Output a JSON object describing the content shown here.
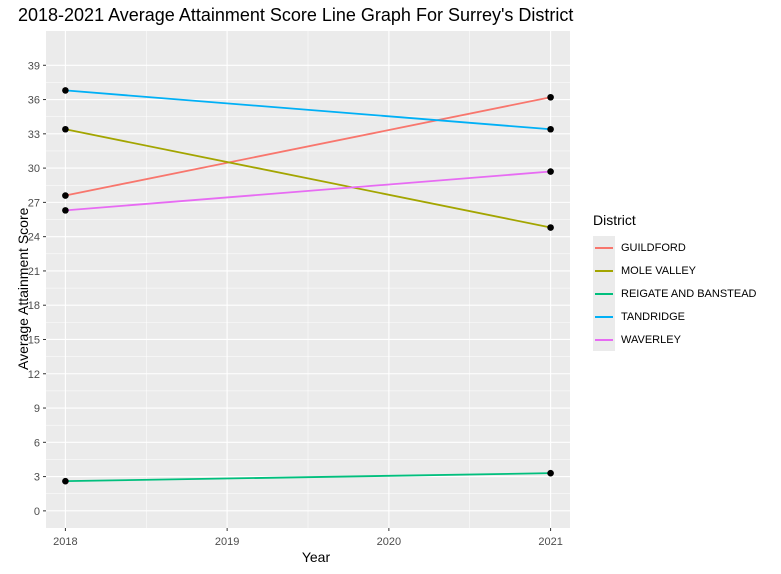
{
  "chart_data": {
    "type": "line",
    "title": "2018-2021 Average Attainment Score Line Graph For Surrey's District",
    "xlabel": "Year",
    "ylabel": "Average Attainment Score",
    "x": [
      2018,
      2021
    ],
    "xticks": [
      "2018",
      "2019",
      "2020",
      "2021"
    ],
    "xlim": [
      2017.88,
      2021.12
    ],
    "yticks": [
      "0",
      "3",
      "6",
      "9",
      "12",
      "15",
      "18",
      "21",
      "24",
      "27",
      "30",
      "33",
      "36",
      "39"
    ],
    "ylim": [
      -1.5,
      42
    ],
    "grid": true,
    "legend_title": "District",
    "legend_position": "right",
    "series": [
      {
        "name": "GUILDFORD",
        "color": "#F8766D",
        "values": [
          27.6,
          36.2
        ]
      },
      {
        "name": "MOLE VALLEY",
        "color": "#A3A500",
        "values": [
          33.4,
          24.8
        ]
      },
      {
        "name": "REIGATE AND BANSTEAD",
        "color": "#00BF7D",
        "values": [
          2.6,
          3.3
        ]
      },
      {
        "name": "TANDRIDGE",
        "color": "#00B0F6",
        "values": [
          36.8,
          33.4
        ]
      },
      {
        "name": "WAVERLEY",
        "color": "#E76BF3",
        "values": [
          26.3,
          29.7
        ]
      }
    ]
  }
}
